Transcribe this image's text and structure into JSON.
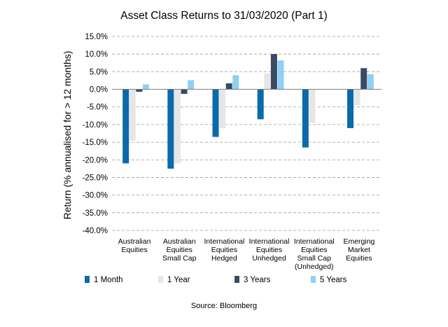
{
  "chart_data": {
    "type": "bar",
    "title": "Asset Class Returns to 31/03/2020 (Part 1)",
    "xlabel": "",
    "ylabel": "Return (% annualised for > 12 months)",
    "ylim": [
      -40,
      15
    ],
    "y_ticks": [
      15,
      10,
      5,
      0,
      -5,
      -10,
      -15,
      -20,
      -25,
      -30,
      -35,
      -40
    ],
    "y_tick_labels": [
      "15.0%",
      "10.0%",
      "5.0%",
      "0.0%",
      "-5.0%",
      "-10.0%",
      "-15.0%",
      "-20.0%",
      "-25.0%",
      "-30.0%",
      "-35.0%",
      "-40.0%"
    ],
    "grid": "horizontal dashed",
    "legend_position": "bottom",
    "categories": [
      [
        "Australian",
        "Equities"
      ],
      [
        "Australian",
        "Equities",
        "Small Cap"
      ],
      [
        "International",
        "Equities",
        "Hedged"
      ],
      [
        "International",
        "Equities",
        "Unhedged"
      ],
      [
        "International",
        "Equities",
        "Small Cap",
        "(Unhedged)"
      ],
      [
        "Emerging",
        "Market",
        "Equities"
      ]
    ],
    "series": [
      {
        "name": "1 Month",
        "color": "#0b6aaa",
        "values": [
          -21.0,
          -22.5,
          -13.5,
          -8.5,
          -16.5,
          -11.0
        ]
      },
      {
        "name": "1 Year",
        "color": "#e6e6e6",
        "values": [
          -14.5,
          -21.0,
          -11.0,
          4.5,
          -9.5,
          -4.5
        ]
      },
      {
        "name": "3 Years",
        "color": "#3a4a63",
        "values": [
          -0.7,
          -1.3,
          1.7,
          10.0,
          0.0,
          6.0
        ]
      },
      {
        "name": "5 Years",
        "color": "#8fd0f4",
        "values": [
          1.4,
          2.6,
          4.0,
          8.2,
          0.0,
          4.3
        ]
      }
    ],
    "source": "Source: Bloomberg"
  }
}
